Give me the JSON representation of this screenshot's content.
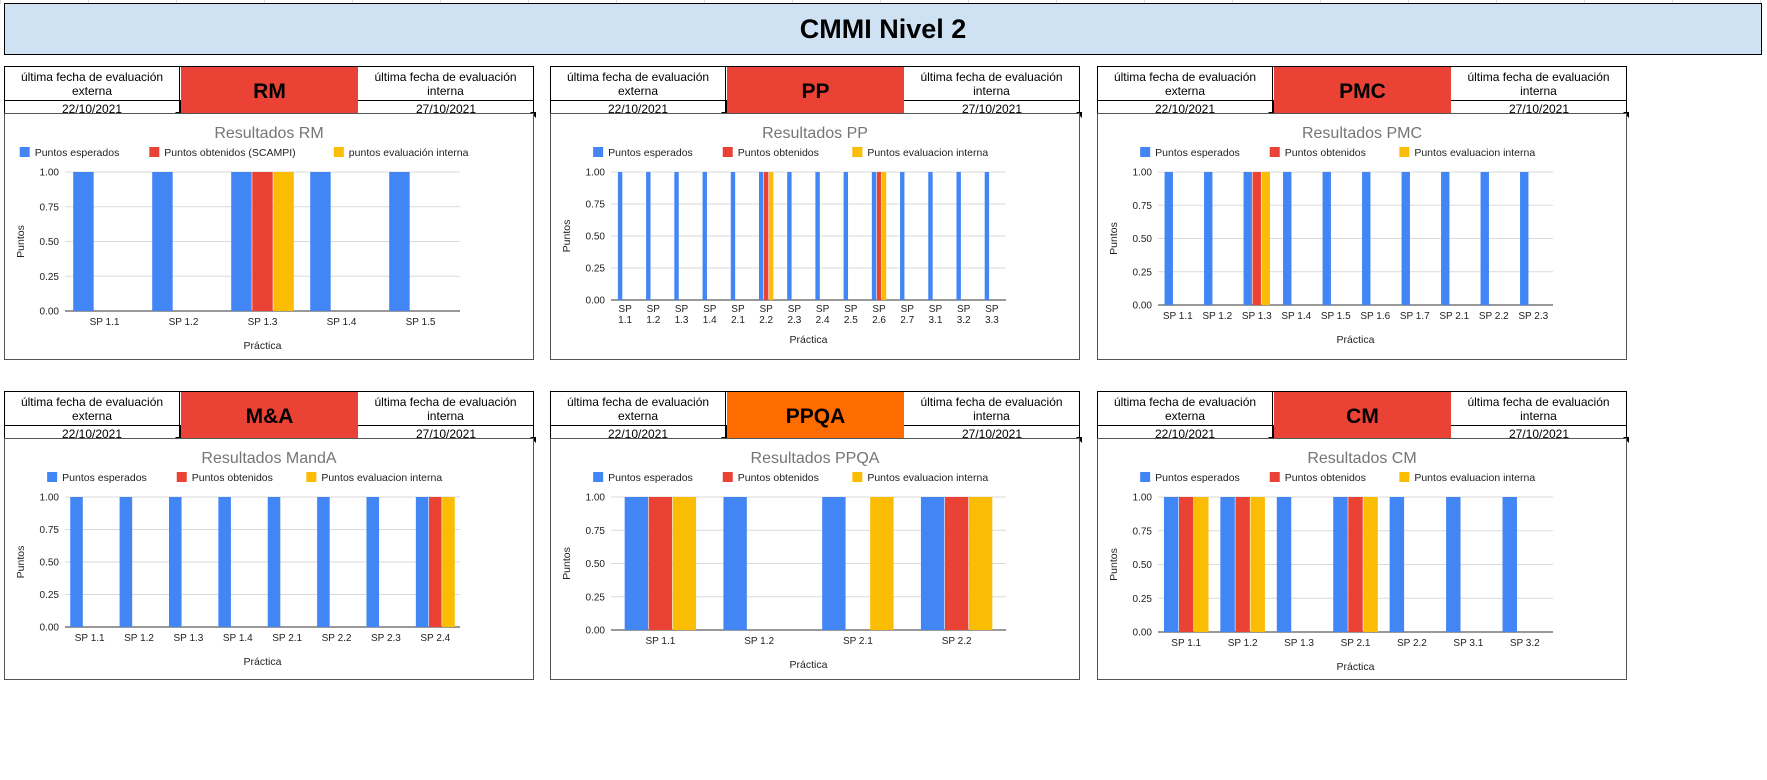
{
  "page_title": "CMMI Nivel 2",
  "colors": {
    "red": "#ea4335",
    "orange": "#ff6d01",
    "blue": "#4285f4",
    "yellow": "#fbbc04",
    "header_bg": "#cfe2f3"
  },
  "panels": [
    {
      "code": "RM",
      "code_color": "#ea4335",
      "left_header": "última fecha de evaluación externa",
      "left_date": "22/10/2021",
      "right_header": "última fecha de evaluación interna",
      "right_date": "27/10/2021"
    },
    {
      "code": "PP",
      "code_color": "#ea4335",
      "left_header": "última fecha de evaluación externa",
      "left_date": "22/10/2021",
      "right_header": "última fecha de evaluación interna",
      "right_date": "27/10/2021"
    },
    {
      "code": "PMC",
      "code_color": "#ea4335",
      "left_header": "última fecha de evaluación externa",
      "left_date": "22/10/2021",
      "right_header": "última fecha de evaluación interna",
      "right_date": "27/10/2021"
    },
    {
      "code": "M&A",
      "code_color": "#ea4335",
      "left_header": "última fecha de evaluación externa",
      "left_date": "22/10/2021",
      "right_header": "última fecha de evaluación interna",
      "right_date": "27/10/2021"
    },
    {
      "code": "PPQA",
      "code_color": "#ff6d01",
      "left_header": "última fecha de evaluación externa",
      "left_date": "22/10/2021",
      "right_header": "última fecha de evaluación interna",
      "right_date": "27/10/2021"
    },
    {
      "code": "CM",
      "code_color": "#ea4335",
      "left_header": "última fecha de evaluación externa",
      "left_date": "22/10/2021",
      "right_header": "última fecha de evaluación interna",
      "right_date": "27/10/2021"
    }
  ],
  "chart_data": [
    {
      "type": "bar",
      "title": "Resultados RM",
      "xlabel": "Práctica",
      "ylabel": "Puntos",
      "ylim": [
        0,
        1
      ],
      "yticks": [
        "0.00",
        "0.25",
        "0.50",
        "0.75",
        "1.00"
      ],
      "legend_position": "top",
      "categories": [
        "SP 1.1",
        "SP 1.2",
        "SP 1.3",
        "SP 1.4",
        "SP 1.5"
      ],
      "series": [
        {
          "name": "Puntos esperados",
          "color": "#4285f4",
          "values": [
            1,
            1,
            1,
            1,
            1
          ]
        },
        {
          "name": "Puntos obtenidos (SCAMPI)",
          "color": "#ea4335",
          "values": [
            0,
            0,
            1,
            0,
            0
          ]
        },
        {
          "name": "puntos evaluación interna",
          "color": "#fbbc04",
          "values": [
            0,
            0,
            1,
            0,
            0
          ]
        }
      ]
    },
    {
      "type": "bar",
      "title": "Resultados PP",
      "xlabel": "Práctica",
      "ylabel": "Puntos",
      "ylim": [
        0,
        1
      ],
      "yticks": [
        "0.00",
        "0.25",
        "0.50",
        "0.75",
        "1.00"
      ],
      "legend_position": "top",
      "categories": [
        "SP 1.1",
        "SP 1.2",
        "SP 1.3",
        "SP 1.4",
        "SP 2.1",
        "SP 2.2",
        "SP 2.3",
        "SP 2.4",
        "SP 2.5",
        "SP 2.6",
        "SP 2.7",
        "SP 3.1",
        "SP 3.2",
        "SP 3.3"
      ],
      "series": [
        {
          "name": "Puntos esperados",
          "color": "#4285f4",
          "values": [
            1,
            1,
            1,
            1,
            1,
            1,
            1,
            1,
            1,
            1,
            1,
            1,
            1,
            1
          ]
        },
        {
          "name": "Puntos obtenidos",
          "color": "#ea4335",
          "values": [
            0,
            0,
            0,
            0,
            0,
            1,
            0,
            0,
            0,
            1,
            0,
            0,
            0,
            0
          ]
        },
        {
          "name": "Puntos evaluacion interna",
          "color": "#fbbc04",
          "values": [
            0,
            0,
            0,
            0,
            0,
            1,
            0,
            0,
            0,
            1,
            0,
            0,
            0,
            0
          ]
        }
      ]
    },
    {
      "type": "bar",
      "title": "Resultados PMC",
      "xlabel": "Práctica",
      "ylabel": "Puntos",
      "ylim": [
        0,
        1
      ],
      "yticks": [
        "0.00",
        "0.25",
        "0.50",
        "0.75",
        "1.00"
      ],
      "legend_position": "top",
      "categories": [
        "SP 1.1",
        "SP 1.2",
        "SP 1.3",
        "SP 1.4",
        "SP 1.5",
        "SP 1.6",
        "SP 1.7",
        "SP 2.1",
        "SP 2.2",
        "SP 2.3"
      ],
      "series": [
        {
          "name": "Puntos esperados",
          "color": "#4285f4",
          "values": [
            1,
            1,
            1,
            1,
            1,
            1,
            1,
            1,
            1,
            1
          ]
        },
        {
          "name": "Puntos obtenidos",
          "color": "#ea4335",
          "values": [
            0,
            0,
            1,
            0,
            0,
            0,
            0,
            0,
            0,
            0
          ]
        },
        {
          "name": "Puntos evaluacion interna",
          "color": "#fbbc04",
          "values": [
            0,
            0,
            1,
            0,
            0,
            0,
            0,
            0,
            0,
            0
          ]
        }
      ]
    },
    {
      "type": "bar",
      "title": "Resultados MandA",
      "xlabel": "Práctica",
      "ylabel": "Puntos",
      "ylim": [
        0,
        1
      ],
      "yticks": [
        "0.00",
        "0.25",
        "0.50",
        "0.75",
        "1.00"
      ],
      "legend_position": "top",
      "categories": [
        "SP 1.1",
        "SP 1.2",
        "SP 1.3",
        "SP 1.4",
        "SP 2.1",
        "SP 2.2",
        "SP 2.3",
        "SP 2.4"
      ],
      "series": [
        {
          "name": "Puntos esperados",
          "color": "#4285f4",
          "values": [
            1,
            1,
            1,
            1,
            1,
            1,
            1,
            1
          ]
        },
        {
          "name": "Puntos obtenidos",
          "color": "#ea4335",
          "values": [
            0,
            0,
            0,
            0,
            0,
            0,
            0,
            1
          ]
        },
        {
          "name": "Puntos evaluacion interna",
          "color": "#fbbc04",
          "values": [
            0,
            0,
            0,
            0,
            0,
            0,
            0,
            1
          ]
        }
      ]
    },
    {
      "type": "bar",
      "title": "Resultados PPQA",
      "xlabel": "Práctica",
      "ylabel": "Puntos",
      "ylim": [
        0,
        1
      ],
      "yticks": [
        "0.00",
        "0.25",
        "0.50",
        "0.75",
        "1.00"
      ],
      "legend_position": "top",
      "categories": [
        "SP 1.1",
        "SP 1.2",
        "SP 2.1",
        "SP 2.2"
      ],
      "series": [
        {
          "name": "Puntos esperados",
          "color": "#4285f4",
          "values": [
            1,
            1,
            1,
            1
          ]
        },
        {
          "name": "Puntos obtenidos",
          "color": "#ea4335",
          "values": [
            1,
            0,
            0,
            1
          ]
        },
        {
          "name": "Puntos evaluacion interna",
          "color": "#fbbc04",
          "values": [
            1,
            0,
            1,
            1
          ]
        }
      ]
    },
    {
      "type": "bar",
      "title": "Resultados CM",
      "xlabel": "Práctica",
      "ylabel": "Puntos",
      "ylim": [
        0,
        1
      ],
      "yticks": [
        "0.00",
        "0.25",
        "0.50",
        "0.75",
        "1.00"
      ],
      "legend_position": "top",
      "categories": [
        "SP 1.1",
        "SP 1.2",
        "SP 1.3",
        "SP 2.1",
        "SP 2.2",
        "SP 3.1",
        "SP 3.2"
      ],
      "series": [
        {
          "name": "Puntos esperados",
          "color": "#4285f4",
          "values": [
            1,
            1,
            1,
            1,
            1,
            1,
            1
          ]
        },
        {
          "name": "Puntos obtenidos",
          "color": "#ea4335",
          "values": [
            1,
            1,
            0,
            1,
            0,
            0,
            0
          ]
        },
        {
          "name": "Puntos evaluacion interna",
          "color": "#fbbc04",
          "values": [
            1,
            1,
            0,
            1,
            0,
            0,
            0
          ]
        }
      ]
    }
  ]
}
